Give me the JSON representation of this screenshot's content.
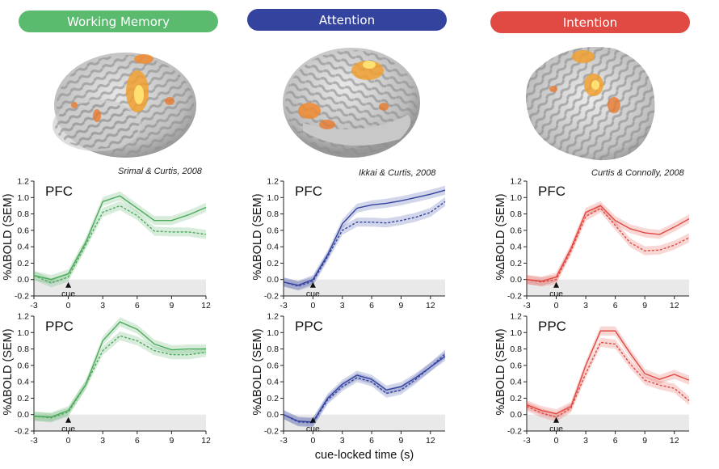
{
  "headers": [
    {
      "label": "Working Memory",
      "color": "#5aba6e"
    },
    {
      "label": "Attention",
      "color": "#34439e"
    },
    {
      "label": "Intention",
      "color": "#e04a42"
    }
  ],
  "citations": [
    "Srimal & Curtis, 2008",
    "Ikkai & Curtis, 2008",
    "Curtis & Connolly, 2008"
  ],
  "chart_data": [
    {
      "type": "line",
      "panel": "Working Memory",
      "region": "PFC",
      "ylabel": "%ΔBOLD (SEM)",
      "xlabel": "",
      "color": "#4daa5c",
      "xlim": [
        -3,
        12
      ],
      "ylim": [
        -0.2,
        1.2
      ],
      "xticks": [
        "-3",
        "0",
        "3",
        "6",
        "9",
        "12"
      ],
      "yticks": [
        "-0.2",
        "0.0",
        "0.2",
        "0.4",
        "0.6",
        "0.8",
        "1.0",
        "1.2"
      ],
      "cue_label": "cue",
      "x": [
        -3,
        -1.5,
        0,
        1.5,
        3,
        4.5,
        6,
        7.5,
        9,
        10.5,
        12
      ],
      "series": [
        {
          "style": "solid",
          "values": [
            0.05,
            0.0,
            0.07,
            0.45,
            0.95,
            1.02,
            0.87,
            0.72,
            0.72,
            0.79,
            0.88
          ]
        },
        {
          "style": "dashed",
          "values": [
            0.05,
            -0.04,
            0.03,
            0.42,
            0.82,
            0.9,
            0.78,
            0.59,
            0.58,
            0.58,
            0.55
          ]
        }
      ]
    },
    {
      "type": "line",
      "panel": "Working Memory",
      "region": "PPC",
      "ylabel": "%ΔBOLD (SEM)",
      "xlabel": "",
      "color": "#4daa5c",
      "xlim": [
        -3,
        12
      ],
      "ylim": [
        -0.2,
        1.2
      ],
      "xticks": [
        "-3",
        "0",
        "3",
        "6",
        "9",
        "12"
      ],
      "yticks": [
        "-0.2",
        "0.0",
        "0.2",
        "0.4",
        "0.6",
        "0.8",
        "1.0",
        "1.2"
      ],
      "cue_label": "cue",
      "x": [
        -3,
        -1.5,
        0,
        1.5,
        3,
        4.5,
        6,
        7.5,
        9,
        10.5,
        12
      ],
      "series": [
        {
          "style": "solid",
          "values": [
            -0.02,
            -0.03,
            0.05,
            0.36,
            0.9,
            1.13,
            1.04,
            0.86,
            0.79,
            0.8,
            0.8
          ]
        },
        {
          "style": "dashed",
          "values": [
            -0.02,
            -0.04,
            0.03,
            0.36,
            0.78,
            0.96,
            0.9,
            0.78,
            0.73,
            0.73,
            0.76
          ]
        }
      ]
    },
    {
      "type": "line",
      "panel": "Attention",
      "region": "PFC",
      "ylabel": "%ΔBOLD (SEM)",
      "xlabel": "",
      "color": "#34439e",
      "xlim": [
        -3,
        13.5
      ],
      "ylim": [
        -0.2,
        1.2
      ],
      "xticks": [
        "-3",
        "0",
        "3",
        "6",
        "9",
        "12"
      ],
      "yticks": [
        "-0.2",
        "0.0",
        "0.2",
        "0.4",
        "0.6",
        "0.8",
        "1.0",
        "1.2"
      ],
      "cue_label": "cue",
      "x": [
        -3,
        -1.5,
        0,
        1.5,
        3,
        4.5,
        6,
        7.5,
        9,
        10.5,
        12,
        13.5
      ],
      "series": [
        {
          "style": "solid",
          "values": [
            -0.03,
            -0.07,
            0.0,
            0.3,
            0.68,
            0.87,
            0.91,
            0.93,
            0.96,
            1.0,
            1.04,
            1.09
          ]
        },
        {
          "style": "dashed",
          "values": [
            -0.03,
            -0.08,
            -0.02,
            0.28,
            0.6,
            0.7,
            0.7,
            0.69,
            0.72,
            0.76,
            0.82,
            0.95
          ]
        }
      ]
    },
    {
      "type": "line",
      "panel": "Attention",
      "region": "PPC",
      "ylabel": "%ΔBOLD (SEM)",
      "xlabel": "cue-locked time (s)",
      "color": "#34439e",
      "xlim": [
        -3,
        13.5
      ],
      "ylim": [
        -0.2,
        1.2
      ],
      "xticks": [
        "-3",
        "0",
        "3",
        "6",
        "9",
        "12"
      ],
      "yticks": [
        "-0.2",
        "0.0",
        "0.2",
        "0.4",
        "0.6",
        "0.8",
        "1.0",
        "1.2"
      ],
      "cue_label": "cue",
      "x": [
        -3,
        -1.5,
        0,
        1.5,
        3,
        4.5,
        6,
        7.5,
        9,
        10.5,
        12,
        13.5
      ],
      "series": [
        {
          "style": "solid",
          "values": [
            0.0,
            -0.08,
            -0.09,
            0.2,
            0.37,
            0.48,
            0.43,
            0.3,
            0.34,
            0.45,
            0.58,
            0.71
          ]
        },
        {
          "style": "dashed",
          "values": [
            0.0,
            -0.09,
            -0.1,
            0.18,
            0.34,
            0.45,
            0.4,
            0.26,
            0.3,
            0.43,
            0.58,
            0.74
          ]
        }
      ]
    },
    {
      "type": "line",
      "panel": "Intention",
      "region": "PFC",
      "ylabel": "%ΔBOLD (SEM)",
      "xlabel": "",
      "color": "#e04a42",
      "xlim": [
        -3,
        13.5
      ],
      "ylim": [
        -0.2,
        1.2
      ],
      "xticks": [
        "-3",
        "0",
        "3",
        "6",
        "9",
        "12"
      ],
      "yticks": [
        "-0.2",
        "0.0",
        "0.2",
        "0.4",
        "0.6",
        "0.8",
        "1.0",
        "1.2"
      ],
      "cue_label": "cue",
      "x": [
        -3,
        -1.5,
        0,
        1.5,
        3,
        4.5,
        6,
        7.5,
        9,
        10.5,
        12,
        13.5
      ],
      "series": [
        {
          "style": "solid",
          "values": [
            0.0,
            -0.02,
            0.03,
            0.38,
            0.82,
            0.9,
            0.72,
            0.62,
            0.57,
            0.55,
            0.64,
            0.74
          ]
        },
        {
          "style": "dashed",
          "values": [
            0.0,
            -0.03,
            0.0,
            0.35,
            0.77,
            0.87,
            0.66,
            0.45,
            0.35,
            0.36,
            0.42,
            0.51
          ]
        }
      ]
    },
    {
      "type": "line",
      "panel": "Intention",
      "region": "PPC",
      "ylabel": "%ΔBOLD (SEM)",
      "xlabel": "",
      "color": "#e04a42",
      "xlim": [
        -3,
        13.5
      ],
      "ylim": [
        -0.2,
        1.2
      ],
      "xticks": [
        "-3",
        "0",
        "3",
        "6",
        "9",
        "12"
      ],
      "yticks": [
        "-0.2",
        "0.0",
        "0.2",
        "0.4",
        "0.6",
        "0.8",
        "1.0",
        "1.2"
      ],
      "cue_label": "cue",
      "x": [
        -3,
        -1.5,
        0,
        1.5,
        3,
        4.5,
        6,
        7.5,
        9,
        10.5,
        12,
        13.5
      ],
      "series": [
        {
          "style": "solid",
          "values": [
            0.12,
            0.05,
            0.01,
            0.1,
            0.6,
            1.02,
            1.02,
            0.75,
            0.5,
            0.43,
            0.49,
            0.42
          ]
        },
        {
          "style": "dashed",
          "values": [
            0.1,
            0.02,
            -0.03,
            0.08,
            0.5,
            0.88,
            0.86,
            0.62,
            0.42,
            0.36,
            0.32,
            0.17
          ]
        }
      ]
    }
  ]
}
